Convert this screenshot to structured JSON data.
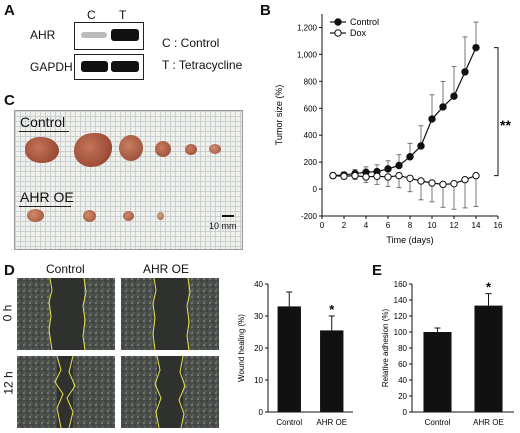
{
  "panelA": {
    "letter": "A",
    "lane_labels": [
      "C",
      "T"
    ],
    "rows": [
      "AHR",
      "GAPDH"
    ],
    "legend": [
      "C : Control",
      "T : Tetracycline"
    ]
  },
  "panelB": {
    "letter": "B",
    "significance": "**"
  },
  "panelC": {
    "letter": "C",
    "label_control": "Control",
    "label_oe": "AHR OE",
    "scale": "10 mm"
  },
  "panelD": {
    "letter": "D",
    "col_headers": [
      "Control",
      "AHR OE"
    ],
    "row_labels": [
      "0 h",
      "12 h"
    ]
  },
  "panelE": {
    "letter": "E"
  },
  "chart_data": [
    {
      "type": "line",
      "xlabel": "Time (days)",
      "ylabel": "Tumor size (%)",
      "xlim": [
        0,
        16
      ],
      "ylim": [
        -200,
        1300
      ],
      "xticks": [
        0,
        2,
        4,
        6,
        8,
        10,
        12,
        14,
        16
      ],
      "yticks": [
        -200,
        0,
        200,
        400,
        600,
        800,
        "1,000",
        "1,200"
      ],
      "legend": "top-left",
      "series": [
        {
          "name": "Control",
          "marker": "filled-circle",
          "x": [
            1,
            2,
            3,
            4,
            5,
            6,
            7,
            8,
            9,
            10,
            11,
            12,
            13,
            14
          ],
          "values": [
            100,
            105,
            115,
            125,
            130,
            150,
            175,
            240,
            320,
            520,
            610,
            690,
            870,
            1050
          ],
          "error": [
            10,
            20,
            30,
            40,
            50,
            60,
            80,
            100,
            150,
            180,
            190,
            220,
            260,
            190
          ]
        },
        {
          "name": "Dox",
          "marker": "open-circle",
          "x": [
            1,
            2,
            3,
            4,
            5,
            6,
            7,
            8,
            9,
            10,
            11,
            12,
            13,
            14
          ],
          "values": [
            100,
            95,
            100,
            90,
            95,
            90,
            100,
            80,
            60,
            45,
            35,
            40,
            70,
            100
          ],
          "error": [
            10,
            20,
            30,
            40,
            60,
            70,
            90,
            100,
            140,
            140,
            170,
            190,
            210,
            230
          ]
        }
      ]
    },
    {
      "type": "bar",
      "categories": [
        "Control",
        "AHR OE"
      ],
      "values": [
        33,
        25.5
      ],
      "error": [
        4.5,
        4.5
      ],
      "ylabel": "Wound healing (%)",
      "ylim": [
        0,
        40
      ],
      "yticks": [
        0,
        10,
        20,
        30,
        40
      ],
      "annotation": "*"
    },
    {
      "type": "bar",
      "categories": [
        "Control",
        "AHR OE"
      ],
      "values": [
        100,
        133
      ],
      "error": [
        5,
        15
      ],
      "ylabel": "Relative adhesion (%)",
      "ylim": [
        0,
        160
      ],
      "yticks": [
        0,
        20,
        40,
        60,
        80,
        100,
        120,
        140,
        160
      ],
      "annotation": "*"
    }
  ]
}
